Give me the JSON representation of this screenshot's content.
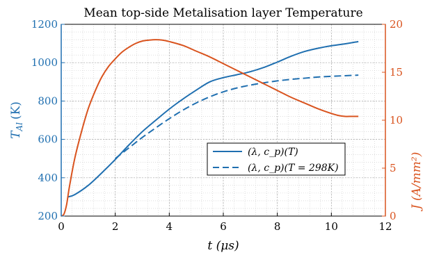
{
  "chart_data": {
    "type": "line",
    "title": "Mean top-side Metalisation layer Temperature",
    "xlabel": "t (μs)",
    "ylabel_left": "T",
    "ylabel_left_sub": "Al",
    "ylabel_left_unit": "(K)",
    "ylabel_right": "J (A/mm²)",
    "xlim": [
      0,
      12
    ],
    "ylim_left": [
      200,
      1200
    ],
    "ylim_right": [
      0,
      20
    ],
    "xticks": [
      "0",
      "2",
      "4",
      "6",
      "8",
      "10",
      "12"
    ],
    "yticks_left": [
      "200",
      "400",
      "600",
      "800",
      "1000",
      "1200"
    ],
    "yticks_right": [
      "0",
      "5",
      "10",
      "15",
      "20"
    ],
    "grid": true,
    "legend_position": "center-right",
    "colors": {
      "temperature": "#1f6fb0",
      "current": "#d9531e",
      "axis": "#000000"
    },
    "series": [
      {
        "name": "(λ, c_p)(T)",
        "axis": "left",
        "style": "solid",
        "x": [
          0.25,
          0.5,
          1,
          1.5,
          2,
          2.5,
          3,
          3.5,
          4,
          4.5,
          5,
          5.5,
          6,
          6.5,
          7,
          7.5,
          8,
          8.5,
          9,
          9.5,
          10,
          10.5,
          11
        ],
        "y": [
          300,
          312,
          360,
          425,
          495,
          570,
          640,
          700,
          758,
          810,
          857,
          900,
          922,
          937,
          953,
          975,
          1003,
          1033,
          1058,
          1075,
          1088,
          1098,
          1110
        ]
      },
      {
        "name": "(λ, c_p)(T = 298K)",
        "axis": "left",
        "style": "dashed",
        "x": [
          2,
          2.5,
          3,
          3.5,
          4,
          4.5,
          5,
          5.5,
          6,
          6.5,
          7,
          7.5,
          8,
          8.5,
          9,
          9.5,
          10,
          10.5,
          11
        ],
        "y": [
          500,
          555,
          610,
          660,
          708,
          752,
          790,
          822,
          848,
          868,
          883,
          895,
          905,
          913,
          919,
          925,
          929,
          932,
          935
        ]
      },
      {
        "name": "J",
        "axis": "right",
        "style": "solid",
        "x": [
          0,
          0.1,
          0.2,
          0.3,
          0.5,
          0.75,
          1,
          1.25,
          1.5,
          1.75,
          2,
          2.25,
          2.5,
          2.75,
          3,
          3.25,
          3.5,
          3.75,
          4,
          4.5,
          5,
          5.5,
          6,
          6.5,
          7,
          7.5,
          8,
          8.5,
          9,
          9.5,
          10,
          10.25,
          10.5,
          10.75,
          11
        ],
        "y": [
          0,
          0.2,
          1.2,
          3,
          6,
          8.8,
          11.2,
          13,
          14.5,
          15.6,
          16.4,
          17.1,
          17.6,
          18,
          18.25,
          18.35,
          18.4,
          18.35,
          18.2,
          17.8,
          17.2,
          16.6,
          15.9,
          15.2,
          14.5,
          13.8,
          13.1,
          12.4,
          11.8,
          11.2,
          10.7,
          10.5,
          10.4,
          10.4,
          10.4
        ]
      }
    ]
  }
}
